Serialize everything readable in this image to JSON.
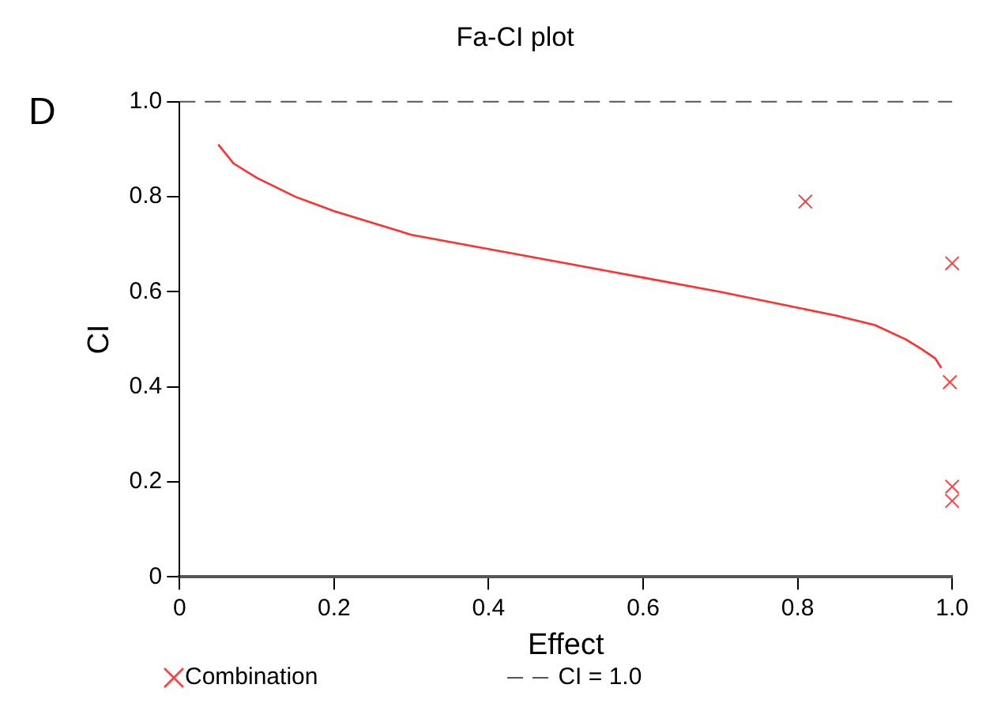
{
  "chart_data": {
    "type": "scatter",
    "title": "Fa-CI plot",
    "xlabel": "Effect",
    "ylabel": "CI",
    "annotations": [
      "D"
    ],
    "xlim": [
      0,
      1
    ],
    "ylim": [
      0,
      1
    ],
    "xticks": [
      0,
      0.2,
      0.4,
      0.6,
      0.8,
      {
        "value": 1,
        "label": "1.0"
      }
    ],
    "yticks": [
      0,
      0.2,
      0.4,
      0.6,
      0.8,
      {
        "value": 1,
        "label": "1.0"
      }
    ],
    "grid": false,
    "legend": "bottom",
    "ref_lines": [
      {
        "axis": "y",
        "value": 1,
        "label": "CI = 1.0",
        "color": "#555555",
        "line_style": "dashed"
      }
    ],
    "series": [
      {
        "type": "line",
        "color": "#ff3030",
        "marker": "none",
        "x": [
          0.05,
          0.07,
          0.1,
          0.15,
          0.2,
          0.3,
          0.4,
          0.5,
          0.6,
          0.7,
          0.79,
          0.85,
          0.9,
          0.94,
          0.96,
          0.978,
          0.986
        ],
        "values": [
          0.91,
          0.87,
          0.84,
          0.8,
          0.77,
          0.72,
          0.69,
          0.66,
          0.63,
          0.6,
          0.57,
          0.55,
          0.53,
          0.5,
          0.48,
          0.46,
          0.44
        ]
      },
      {
        "name": "Combination",
        "color": "#ff4040",
        "marker": "cross",
        "x": [
          0.81,
          1.0,
          0.997,
          1.0,
          1.0
        ],
        "values": [
          0.79,
          0.66,
          0.41,
          0.19,
          0.16
        ]
      }
    ]
  }
}
